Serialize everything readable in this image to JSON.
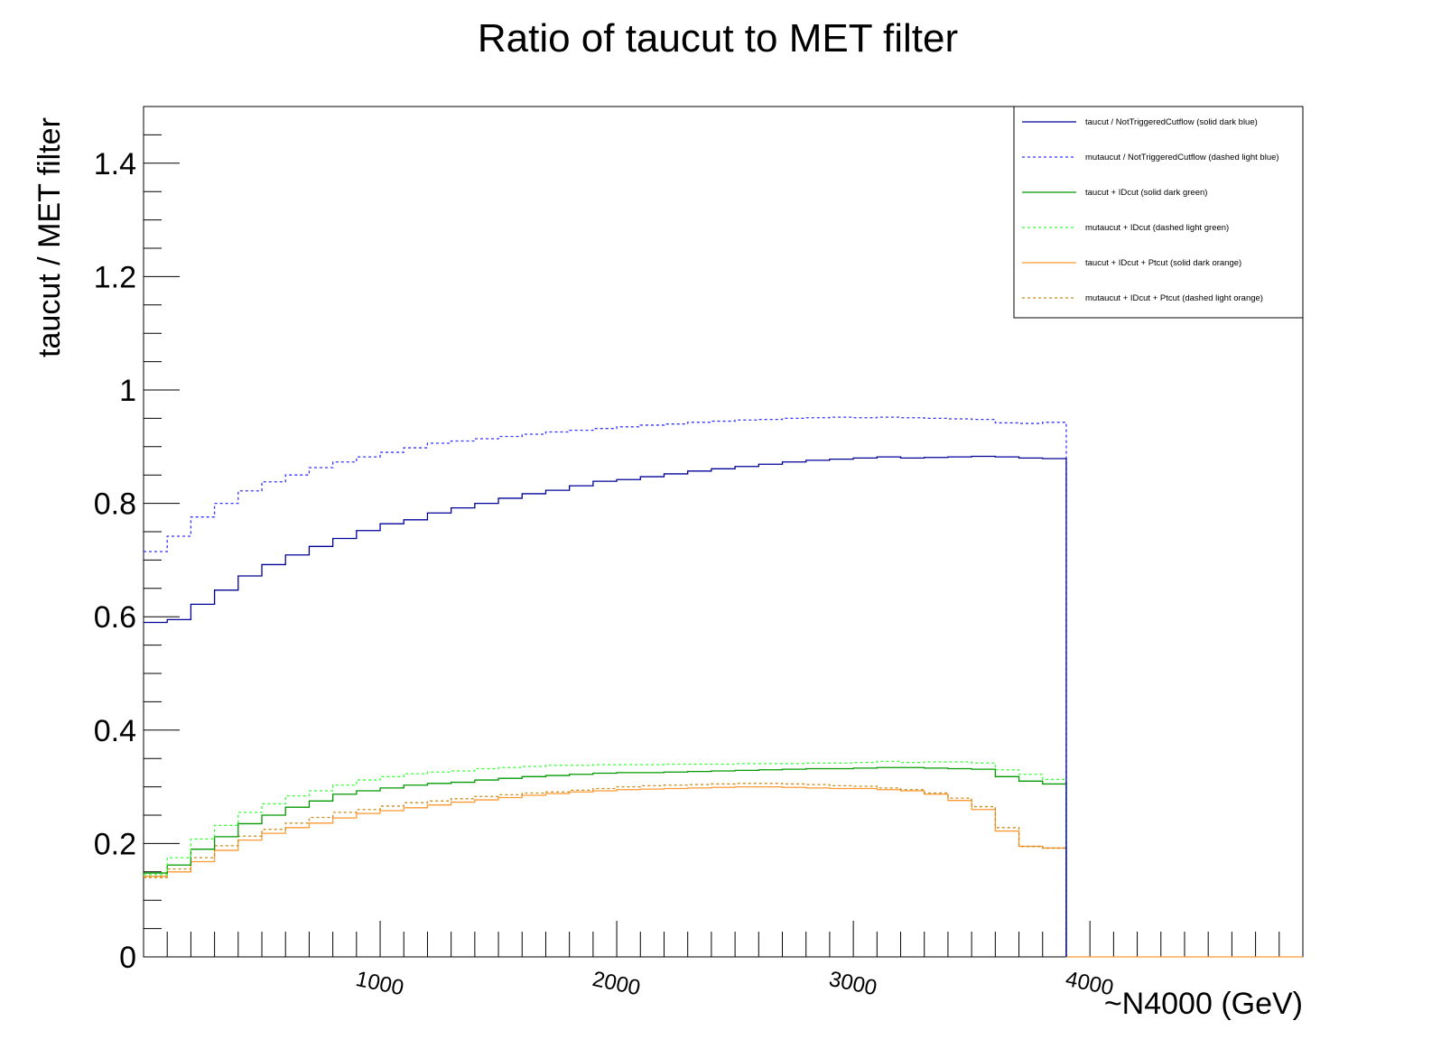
{
  "chart_data": {
    "type": "line",
    "title": "Ratio of taucut to MET filter",
    "xlabel": "~N4000 (GeV)",
    "ylabel": "taucut / MET filter",
    "xlim": [
      0,
      4900
    ],
    "ylim": [
      0,
      1.5
    ],
    "x_ticks": [
      1000,
      2000,
      3000,
      4000
    ],
    "y_ticks": [
      0,
      0.2,
      0.4,
      0.6,
      0.8,
      1,
      1.2,
      1.4
    ],
    "x_tick_labels": [
      "1000",
      "2000",
      "3000",
      "4000"
    ],
    "y_tick_labels": [
      "0",
      "0.2",
      "0.4",
      "0.6",
      "0.8",
      "1",
      "1.2",
      "1.4"
    ],
    "bin_width": 100,
    "x_bin_edges_start": 0,
    "data_end": 3900,
    "grid": false,
    "legend_position": "top-right",
    "series": [
      {
        "name": "taucut / NotTriggeredCutflow (solid dark blue)",
        "color": "#000099",
        "dashed": false,
        "values": [
          0.59,
          0.595,
          0.622,
          0.647,
          0.672,
          0.692,
          0.709,
          0.724,
          0.738,
          0.752,
          0.764,
          0.771,
          0.783,
          0.792,
          0.8,
          0.809,
          0.817,
          0.823,
          0.831,
          0.839,
          0.842,
          0.847,
          0.852,
          0.857,
          0.861,
          0.865,
          0.869,
          0.873,
          0.876,
          0.878,
          0.88,
          0.882,
          0.88,
          0.881,
          0.882,
          0.883,
          0.882,
          0.88,
          0.879
        ]
      },
      {
        "name": "mutaucut / NotTriggeredCutflow (dashed light blue)",
        "color": "#3333ff",
        "dashed": true,
        "values": [
          0.715,
          0.742,
          0.776,
          0.8,
          0.822,
          0.838,
          0.85,
          0.863,
          0.873,
          0.882,
          0.89,
          0.898,
          0.906,
          0.91,
          0.914,
          0.918,
          0.922,
          0.926,
          0.929,
          0.932,
          0.935,
          0.938,
          0.94,
          0.943,
          0.945,
          0.947,
          0.948,
          0.95,
          0.951,
          0.952,
          0.951,
          0.952,
          0.951,
          0.95,
          0.949,
          0.948,
          0.942,
          0.941,
          0.943
        ]
      },
      {
        "name": "taucut + IDcut (solid dark green)",
        "color": "#009900",
        "dashed": false,
        "values": [
          0.148,
          0.162,
          0.19,
          0.212,
          0.235,
          0.25,
          0.264,
          0.275,
          0.287,
          0.293,
          0.298,
          0.303,
          0.306,
          0.308,
          0.312,
          0.315,
          0.318,
          0.32,
          0.322,
          0.324,
          0.325,
          0.325,
          0.326,
          0.327,
          0.328,
          0.329,
          0.33,
          0.331,
          0.332,
          0.332,
          0.333,
          0.334,
          0.334,
          0.333,
          0.332,
          0.331,
          0.318,
          0.31,
          0.305
        ]
      },
      {
        "name": "mutaucut + IDcut (dashed light green)",
        "color": "#33ff33",
        "dashed": true,
        "values": [
          0.145,
          0.175,
          0.208,
          0.232,
          0.255,
          0.27,
          0.284,
          0.293,
          0.303,
          0.312,
          0.318,
          0.323,
          0.326,
          0.328,
          0.332,
          0.334,
          0.336,
          0.338,
          0.338,
          0.339,
          0.339,
          0.339,
          0.34,
          0.34,
          0.34,
          0.341,
          0.341,
          0.341,
          0.342,
          0.342,
          0.343,
          0.345,
          0.343,
          0.344,
          0.344,
          0.342,
          0.33,
          0.322,
          0.313
        ]
      },
      {
        "name": "taucut + IDcut + Ptcut (solid dark orange)",
        "color": "#ff9933",
        "dashed": false,
        "values": [
          0.142,
          0.15,
          0.168,
          0.188,
          0.206,
          0.218,
          0.228,
          0.236,
          0.245,
          0.253,
          0.258,
          0.263,
          0.268,
          0.273,
          0.277,
          0.281,
          0.285,
          0.288,
          0.291,
          0.293,
          0.295,
          0.296,
          0.297,
          0.298,
          0.299,
          0.3,
          0.3,
          0.299,
          0.298,
          0.297,
          0.297,
          0.295,
          0.293,
          0.287,
          0.276,
          0.26,
          0.222,
          0.195,
          0.192
        ]
      },
      {
        "name": "mutaucut + IDcut + Ptcut (dashed light orange)",
        "color": "#cc8a1a",
        "dashed": true,
        "values": [
          0.14,
          0.155,
          0.175,
          0.196,
          0.213,
          0.225,
          0.236,
          0.246,
          0.255,
          0.26,
          0.266,
          0.272,
          0.275,
          0.279,
          0.283,
          0.286,
          0.289,
          0.291,
          0.294,
          0.297,
          0.3,
          0.302,
          0.303,
          0.304,
          0.305,
          0.306,
          0.306,
          0.305,
          0.304,
          0.302,
          0.301,
          0.298,
          0.295,
          0.289,
          0.28,
          0.265,
          0.228,
          0.195,
          0.192
        ]
      }
    ]
  }
}
